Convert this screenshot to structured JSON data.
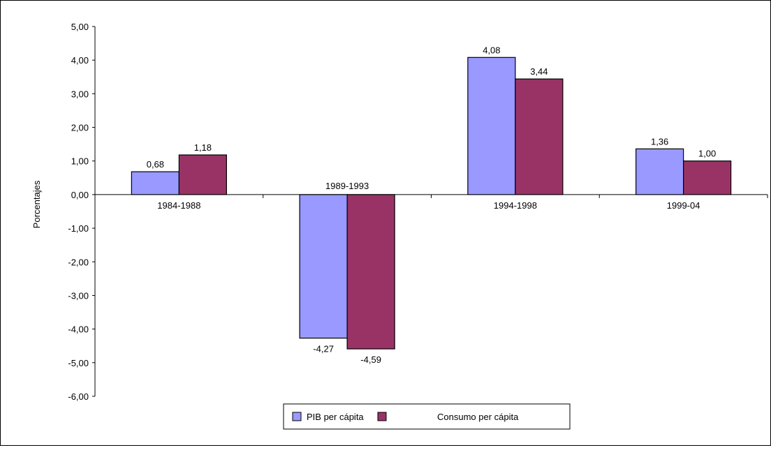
{
  "chart_data": {
    "type": "bar",
    "title": "",
    "xlabel": "",
    "ylabel": "Porcentajes",
    "ylim": [
      -6,
      5
    ],
    "yticks": [
      "5,00",
      "4,00",
      "3,00",
      "2,00",
      "1,00",
      "0,00",
      "-1,00",
      "-2,00",
      "-3,00",
      "-4,00",
      "-5,00",
      "-6,00"
    ],
    "categories": [
      "1984-1988",
      "1989-1993",
      "1994-1998",
      "1999-04"
    ],
    "series": [
      {
        "name": "PIB per cápita",
        "values": [
          0.68,
          -4.27,
          4.08,
          1.36
        ],
        "labels": [
          "0,68",
          "-4,27",
          "4,08",
          "1,36"
        ],
        "color": "#9999ff"
      },
      {
        "name": "Consumo per cápita",
        "values": [
          1.18,
          -4.59,
          3.44,
          1.0
        ],
        "labels": [
          "1,18",
          "-4,59",
          "3,44",
          "1,00"
        ],
        "color": "#993366"
      }
    ],
    "grid": false,
    "legend": "bottom"
  }
}
